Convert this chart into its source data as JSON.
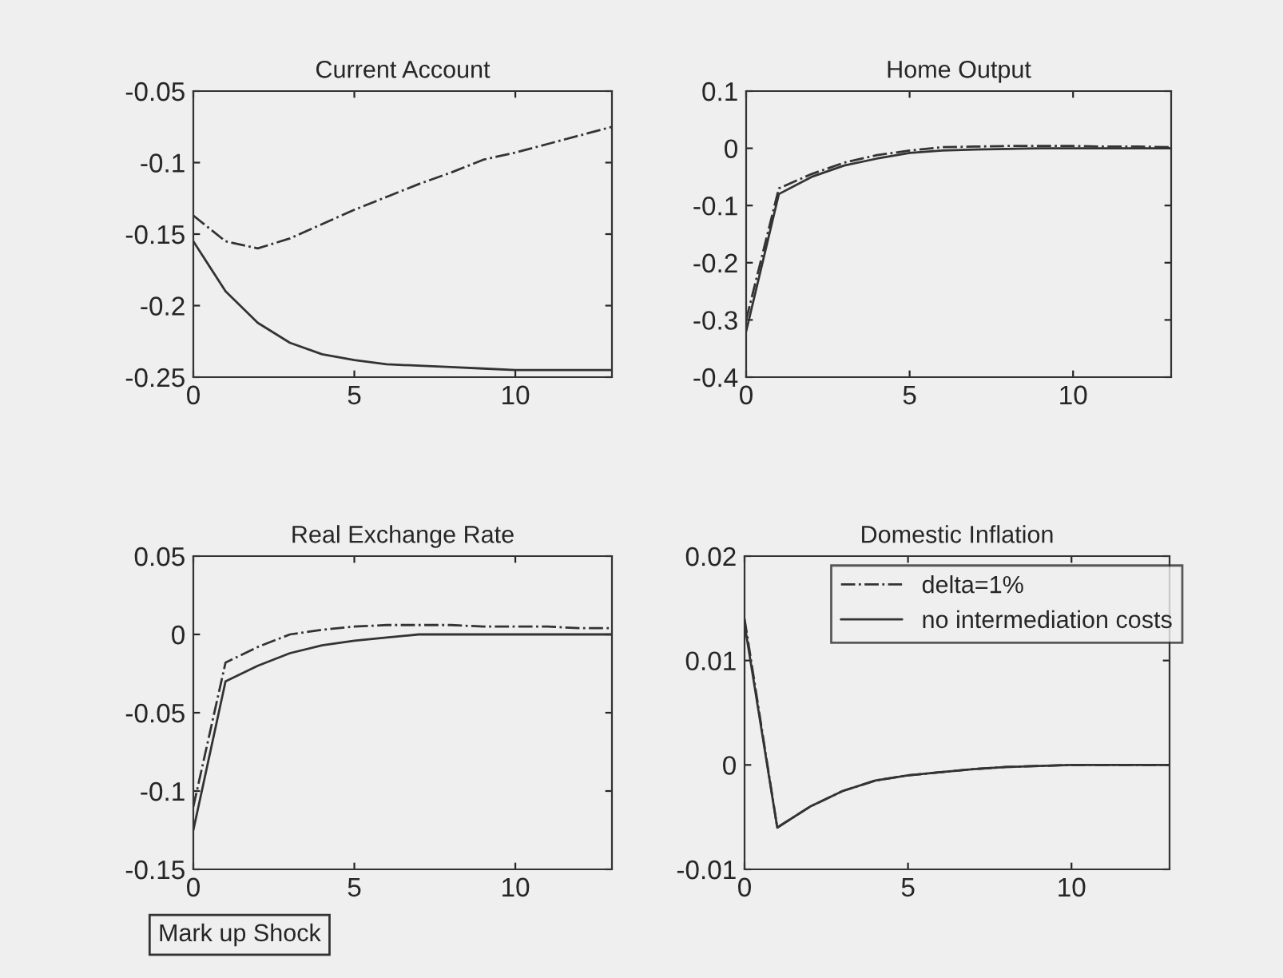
{
  "chart_data": [
    {
      "type": "line",
      "title": "Current Account",
      "x": [
        0,
        1,
        2,
        3,
        4,
        5,
        6,
        7,
        8,
        9,
        10,
        11,
        12,
        13
      ],
      "xlim": [
        0,
        13
      ],
      "xticks": [
        0,
        5,
        10
      ],
      "ylim": [
        -0.25,
        -0.05
      ],
      "yticks": [
        -0.25,
        -0.2,
        -0.15,
        -0.1,
        -0.05
      ],
      "grid": false,
      "series": [
        {
          "color": "#333333",
          "line_style": "dashdot",
          "values": [
            -0.137,
            -0.155,
            -0.16,
            -0.153,
            -0.143,
            -0.133,
            -0.124,
            -0.115,
            -0.107,
            -0.098,
            -0.093,
            -0.087,
            -0.081,
            -0.075
          ]
        },
        {
          "color": "#333333",
          "line_style": "solid",
          "values": [
            -0.155,
            -0.19,
            -0.212,
            -0.226,
            -0.234,
            -0.238,
            -0.241,
            -0.242,
            -0.243,
            -0.244,
            -0.245,
            -0.245,
            -0.245,
            -0.245
          ]
        }
      ]
    },
    {
      "type": "line",
      "title": "Home Output",
      "x": [
        0,
        1,
        2,
        3,
        4,
        5,
        6,
        7,
        8,
        9,
        10,
        11,
        12,
        13
      ],
      "xlim": [
        0,
        13
      ],
      "xticks": [
        0,
        5,
        10
      ],
      "ylim": [
        -0.4,
        0.1
      ],
      "yticks": [
        -0.4,
        -0.3,
        -0.2,
        -0.1,
        0,
        0.1
      ],
      "grid": false,
      "series": [
        {
          "color": "#333333",
          "line_style": "dashdot",
          "values": [
            -0.3,
            -0.07,
            -0.045,
            -0.025,
            -0.012,
            -0.004,
            0.002,
            0.003,
            0.004,
            0.004,
            0.004,
            0.003,
            0.003,
            0.002
          ]
        },
        {
          "color": "#333333",
          "line_style": "solid",
          "values": [
            -0.32,
            -0.08,
            -0.05,
            -0.03,
            -0.018,
            -0.008,
            -0.004,
            -0.002,
            -0.001,
            0,
            0,
            0,
            0,
            0
          ]
        }
      ]
    },
    {
      "type": "line",
      "title": "Real Exchange Rate",
      "x": [
        0,
        1,
        2,
        3,
        4,
        5,
        6,
        7,
        8,
        9,
        10,
        11,
        12,
        13
      ],
      "xlim": [
        0,
        13
      ],
      "xticks": [
        0,
        5,
        10
      ],
      "ylim": [
        -0.15,
        0.05
      ],
      "yticks": [
        -0.15,
        -0.1,
        -0.05,
        0,
        0.05
      ],
      "grid": false,
      "annotations": [
        "Mark up Shock"
      ],
      "series": [
        {
          "color": "#333333",
          "line_style": "dashdot",
          "values": [
            -0.11,
            -0.018,
            -0.008,
            0,
            0.003,
            0.005,
            0.006,
            0.006,
            0.006,
            0.005,
            0.005,
            0.005,
            0.004,
            0.004
          ]
        },
        {
          "color": "#333333",
          "line_style": "solid",
          "values": [
            -0.125,
            -0.03,
            -0.02,
            -0.012,
            -0.007,
            -0.004,
            -0.002,
            0,
            0,
            0,
            0,
            0,
            0,
            0
          ]
        }
      ]
    },
    {
      "type": "line",
      "title": "Domestic Inflation",
      "x": [
        0,
        1,
        2,
        3,
        4,
        5,
        6,
        7,
        8,
        9,
        10,
        11,
        12,
        13
      ],
      "xlim": [
        0,
        13
      ],
      "xticks": [
        0,
        5,
        10
      ],
      "ylim": [
        -0.01,
        0.02
      ],
      "yticks": [
        -0.01,
        0,
        0.01,
        0.02
      ],
      "grid": false,
      "legend": "top right",
      "series": [
        {
          "name": "delta=1%",
          "color": "#333333",
          "line_style": "dashdot",
          "values": [
            0.014,
            -0.006,
            -0.004,
            -0.0025,
            -0.0015,
            -0.001,
            -0.0007,
            -0.0004,
            -0.0002,
            -0.0001,
            0,
            0,
            0,
            0
          ]
        },
        {
          "name": "no intermediation costs",
          "color": "#333333",
          "line_style": "solid",
          "values": [
            0.0135,
            -0.006,
            -0.004,
            -0.0025,
            -0.0015,
            -0.001,
            -0.0007,
            -0.0004,
            -0.0002,
            -0.0001,
            0,
            0,
            0,
            0
          ]
        }
      ]
    }
  ]
}
